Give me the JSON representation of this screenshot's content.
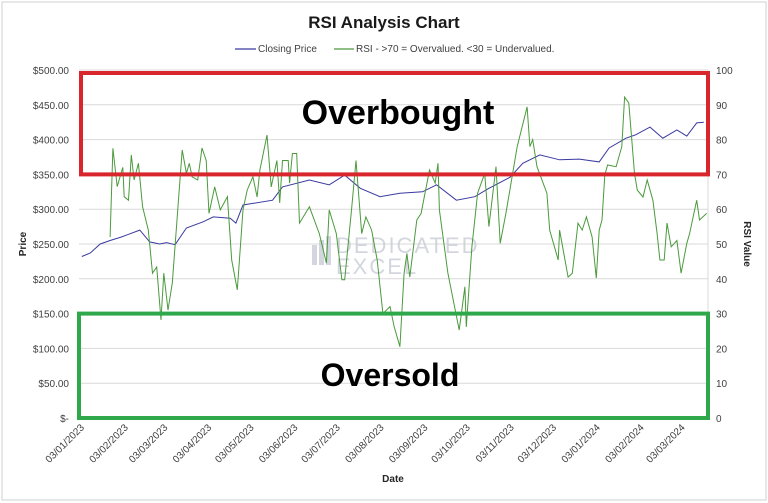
{
  "chart_data": {
    "type": "line",
    "title": "RSI Analysis Chart",
    "xlabel": "Date",
    "ylabel": "Price",
    "y2label": "RSI Value",
    "xlim": [
      "2023-01-01",
      "2024-03-21"
    ],
    "ylim": [
      0,
      500
    ],
    "y2lim": [
      0,
      100
    ],
    "grid": true,
    "legend": "top",
    "x_ticks": [
      "03/01/2023",
      "03/02/2023",
      "03/03/2023",
      "03/04/2023",
      "03/05/2023",
      "03/06/2023",
      "03/07/2023",
      "03/08/2023",
      "03/09/2023",
      "03/10/2023",
      "03/11/2023",
      "03/12/2023",
      "03/01/2024",
      "03/02/2024",
      "03/03/2024"
    ],
    "x_tick_dates": [
      "2023-01-03",
      "2023-02-03",
      "2023-03-03",
      "2023-04-03",
      "2023-05-03",
      "2023-06-03",
      "2023-07-03",
      "2023-08-03",
      "2023-09-03",
      "2023-10-03",
      "2023-11-03",
      "2023-12-03",
      "2024-01-03",
      "2024-02-03",
      "2024-03-03"
    ],
    "y_ticks": [
      "$-",
      "$50.00",
      "$100.00",
      "$150.00",
      "$200.00",
      "$250.00",
      "$300.00",
      "$350.00",
      "$400.00",
      "$450.00",
      "$500.00"
    ],
    "y2_ticks": [
      "0",
      "10",
      "20",
      "30",
      "40",
      "50",
      "60",
      "70",
      "80",
      "90",
      "100"
    ],
    "series": [
      {
        "name": "Closing Price",
        "axis": "left",
        "color": "#3a3aa0",
        "points": [
          [
            "2023-01-03",
            232
          ],
          [
            "2023-01-09",
            237
          ],
          [
            "2023-01-16",
            250
          ],
          [
            "2023-01-23",
            255
          ],
          [
            "2023-01-31",
            260
          ],
          [
            "2023-02-13",
            270
          ],
          [
            "2023-02-20",
            253
          ],
          [
            "2023-02-27",
            250
          ],
          [
            "2023-03-04",
            252
          ],
          [
            "2023-03-10",
            249
          ],
          [
            "2023-03-18",
            273
          ],
          [
            "2023-03-30",
            282
          ],
          [
            "2023-04-06",
            289
          ],
          [
            "2023-04-18",
            287
          ],
          [
            "2023-04-22",
            280
          ],
          [
            "2023-04-27",
            306
          ],
          [
            "2023-05-18",
            313
          ],
          [
            "2023-05-25",
            332
          ],
          [
            "2023-06-13",
            342
          ],
          [
            "2023-06-27",
            335
          ],
          [
            "2023-07-08",
            349
          ],
          [
            "2023-07-19",
            330
          ],
          [
            "2023-08-02",
            318
          ],
          [
            "2023-08-16",
            323
          ],
          [
            "2023-09-01",
            325
          ],
          [
            "2023-09-11",
            335
          ],
          [
            "2023-09-25",
            313
          ],
          [
            "2023-10-08",
            318
          ],
          [
            "2023-10-18",
            330
          ],
          [
            "2023-11-02",
            346
          ],
          [
            "2023-11-11",
            366
          ],
          [
            "2023-11-23",
            378
          ],
          [
            "2023-12-07",
            371
          ],
          [
            "2023-12-21",
            372
          ],
          [
            "2024-01-04",
            368
          ],
          [
            "2024-01-11",
            388
          ],
          [
            "2024-01-23",
            402
          ],
          [
            "2024-01-30",
            407
          ],
          [
            "2024-02-09",
            418
          ],
          [
            "2024-02-18",
            402
          ],
          [
            "2024-02-28",
            414
          ],
          [
            "2024-03-06",
            405
          ],
          [
            "2024-03-13",
            424
          ],
          [
            "2024-03-18",
            425
          ]
        ]
      },
      {
        "name": "RSI - >70 = Overvalued. <30 = Undervalued.",
        "axis": "right",
        "color": "#4a9a3c",
        "points": [
          [
            "2023-01-23",
            52
          ],
          [
            "2023-01-25",
            77.5
          ],
          [
            "2023-01-28",
            66.5
          ],
          [
            "2023-02-01",
            72
          ],
          [
            "2023-02-02",
            63.6
          ],
          [
            "2023-02-05",
            62.6
          ],
          [
            "2023-02-07",
            75.6
          ],
          [
            "2023-02-09",
            68.4
          ],
          [
            "2023-02-12",
            73.2
          ],
          [
            "2023-02-15",
            60.7
          ],
          [
            "2023-02-19",
            54
          ],
          [
            "2023-02-22",
            41.6
          ],
          [
            "2023-02-25",
            43.4
          ],
          [
            "2023-02-28",
            28.2
          ],
          [
            "2023-03-02",
            41.6
          ],
          [
            "2023-03-05",
            31
          ],
          [
            "2023-03-08",
            38.8
          ],
          [
            "2023-03-15",
            77
          ],
          [
            "2023-03-18",
            70.3
          ],
          [
            "2023-03-20",
            73.2
          ],
          [
            "2023-03-22",
            69.3
          ],
          [
            "2023-03-26",
            68.4
          ],
          [
            "2023-03-29",
            77.6
          ],
          [
            "2023-04-01",
            74
          ],
          [
            "2023-04-03",
            58.8
          ],
          [
            "2023-04-07",
            66.4
          ],
          [
            "2023-04-11",
            59.8
          ],
          [
            "2023-04-16",
            63.6
          ],
          [
            "2023-04-19",
            45.4
          ],
          [
            "2023-04-23",
            36.8
          ],
          [
            "2023-04-27",
            59.8
          ],
          [
            "2023-04-30",
            65.5
          ],
          [
            "2023-05-04",
            69.3
          ],
          [
            "2023-05-07",
            63.5
          ],
          [
            "2023-05-09",
            71.3
          ],
          [
            "2023-05-14",
            81.3
          ],
          [
            "2023-05-17",
            66.4
          ],
          [
            "2023-05-21",
            74
          ],
          [
            "2023-05-23",
            61.8
          ],
          [
            "2023-05-25",
            74
          ],
          [
            "2023-05-29",
            74
          ],
          [
            "2023-05-30",
            67.5
          ],
          [
            "2023-06-01",
            76
          ],
          [
            "2023-06-04",
            76
          ],
          [
            "2023-06-06",
            56
          ],
          [
            "2023-06-13",
            60.7
          ],
          [
            "2023-06-20",
            53
          ],
          [
            "2023-06-25",
            44.5
          ],
          [
            "2023-06-27",
            59.8
          ],
          [
            "2023-07-02",
            53
          ],
          [
            "2023-07-06",
            39.7
          ],
          [
            "2023-07-08",
            39.7
          ],
          [
            "2023-07-13",
            60.7
          ],
          [
            "2023-07-16",
            74
          ],
          [
            "2023-07-20",
            53
          ],
          [
            "2023-07-23",
            57.8
          ],
          [
            "2023-07-27",
            54
          ],
          [
            "2023-07-31",
            45.4
          ],
          [
            "2023-08-04",
            30
          ],
          [
            "2023-08-09",
            32
          ],
          [
            "2023-08-12",
            26.2
          ],
          [
            "2023-08-16",
            20.5
          ],
          [
            "2023-08-19",
            41.6
          ],
          [
            "2023-08-21",
            47.3
          ],
          [
            "2023-08-23",
            40.5
          ],
          [
            "2023-08-28",
            56.9
          ],
          [
            "2023-08-31",
            58.8
          ],
          [
            "2023-09-06",
            71.3
          ],
          [
            "2023-09-10",
            67.5
          ],
          [
            "2023-09-12",
            73.2
          ],
          [
            "2023-09-13",
            59.8
          ],
          [
            "2023-09-19",
            41.6
          ],
          [
            "2023-09-27",
            25.3
          ],
          [
            "2023-10-01",
            37.7
          ],
          [
            "2023-10-02",
            26.2
          ],
          [
            "2023-10-06",
            49.2
          ],
          [
            "2023-10-10",
            64.6
          ],
          [
            "2023-10-15",
            70.3
          ],
          [
            "2023-10-18",
            55
          ],
          [
            "2023-10-23",
            72.2
          ],
          [
            "2023-10-26",
            50.2
          ],
          [
            "2023-10-30",
            58.8
          ],
          [
            "2023-11-07",
            78
          ],
          [
            "2023-11-14",
            89.4
          ],
          [
            "2023-11-16",
            78
          ],
          [
            "2023-11-18",
            80
          ],
          [
            "2023-11-21",
            72.2
          ],
          [
            "2023-11-28",
            64.6
          ],
          [
            "2023-11-30",
            54
          ],
          [
            "2023-12-06",
            45.4
          ],
          [
            "2023-12-07",
            54
          ],
          [
            "2023-12-10",
            47.3
          ],
          [
            "2023-12-13",
            40.5
          ],
          [
            "2023-12-16",
            41.6
          ],
          [
            "2023-12-20",
            56
          ],
          [
            "2023-12-23",
            54
          ],
          [
            "2023-12-26",
            57.8
          ],
          [
            "2023-12-30",
            52
          ],
          [
            "2024-01-02",
            40.2
          ],
          [
            "2024-01-04",
            54
          ],
          [
            "2024-01-06",
            56.9
          ],
          [
            "2024-01-08",
            69.8
          ],
          [
            "2024-01-10",
            72.7
          ],
          [
            "2024-01-16",
            72.2
          ],
          [
            "2024-01-20",
            78
          ],
          [
            "2024-01-22",
            92.2
          ],
          [
            "2024-01-25",
            90.5
          ],
          [
            "2024-01-29",
            70.3
          ],
          [
            "2024-01-31",
            65.5
          ],
          [
            "2024-02-04",
            63.5
          ],
          [
            "2024-02-07",
            68.4
          ],
          [
            "2024-02-11",
            62.6
          ],
          [
            "2024-02-14",
            53
          ],
          [
            "2024-02-16",
            45.4
          ],
          [
            "2024-02-19",
            45.4
          ],
          [
            "2024-02-21",
            56
          ],
          [
            "2024-02-24",
            49.2
          ],
          [
            "2024-02-28",
            51
          ],
          [
            "2024-03-02",
            41.6
          ],
          [
            "2024-03-06",
            50.2
          ],
          [
            "2024-03-08",
            53
          ],
          [
            "2024-03-13",
            62.6
          ],
          [
            "2024-03-15",
            56.9
          ],
          [
            "2024-03-20",
            58.8
          ]
        ]
      }
    ],
    "annotations": [
      {
        "label": "Overbought",
        "rsi_range": [
          70,
          100
        ],
        "color": "#d9262c"
      },
      {
        "label": "Oversold",
        "rsi_range": [
          0,
          30
        ],
        "color": "#2ea84a"
      }
    ],
    "watermark": "DEDICATED EXCEL"
  }
}
